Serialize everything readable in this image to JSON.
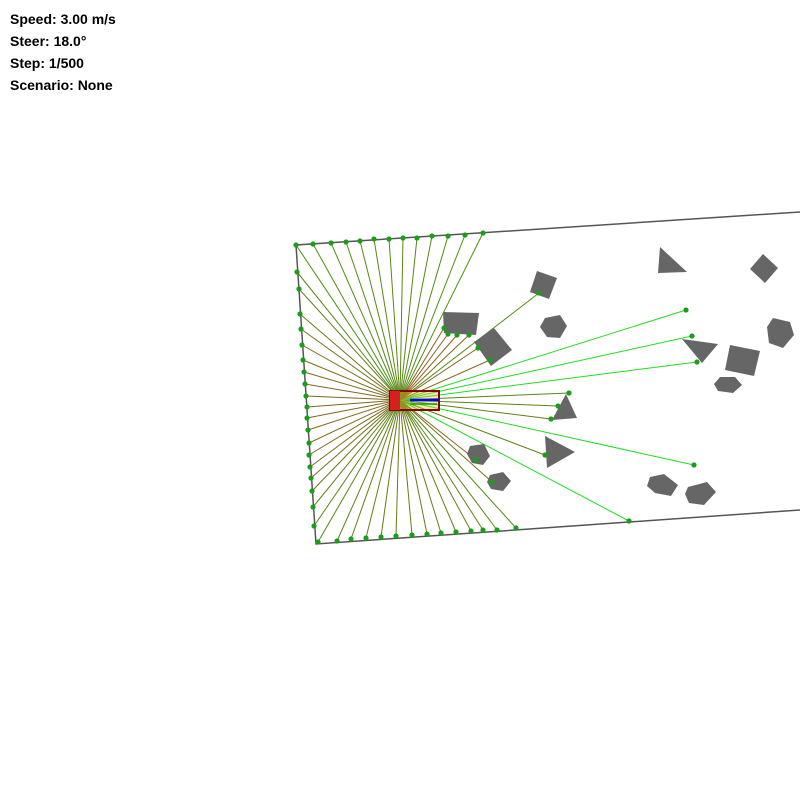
{
  "hud": {
    "speed": "Speed: 3.00 m/s",
    "steer": "Steer: 18.0°",
    "step": "Step: 1/500",
    "scenario": "Scenario: None"
  },
  "colors": {
    "background": "#ffffff",
    "boundary": "#555555",
    "obstacle": "#666666",
    "ray_near": "#c0392b",
    "ray_far": "#00dd00",
    "hit_point": "#1a9e1a",
    "vehicle_body": "#8b0000",
    "vehicle_fill": "#f5c542",
    "heading_arrow": "#0000ff"
  },
  "icons": {
    "vehicle": "car-icon",
    "obstacle": "polygon-obstacle-icon",
    "sensor_ray": "lidar-ray-icon"
  }
}
